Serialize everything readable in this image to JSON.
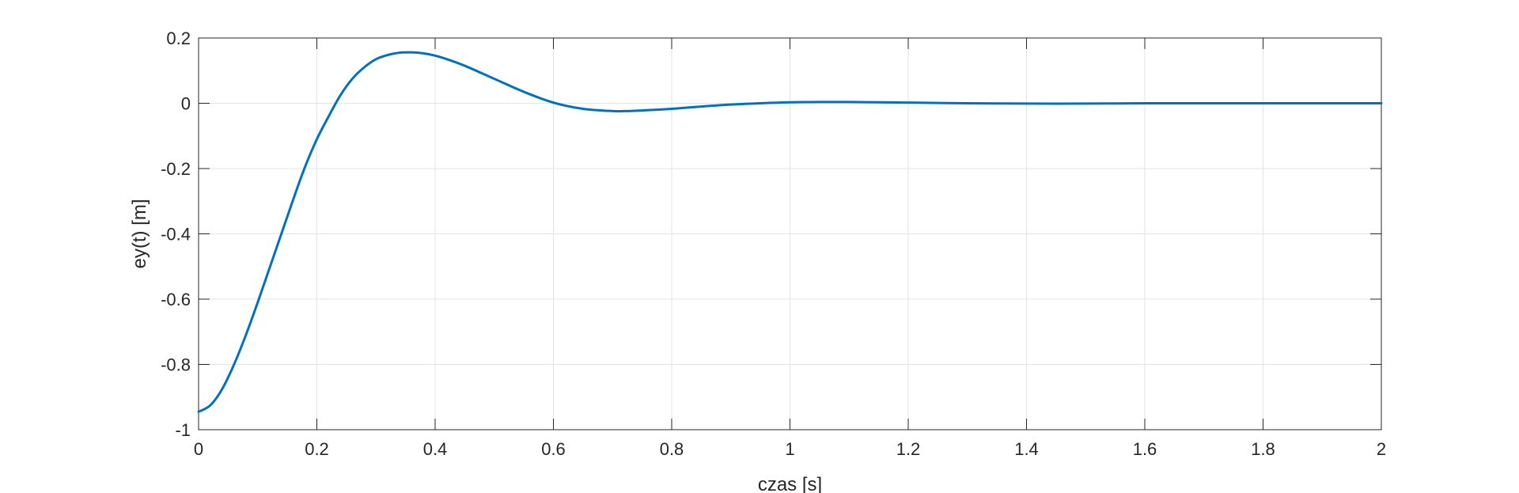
{
  "chart_data": {
    "type": "line",
    "title": "",
    "xlabel": "czas   [s]",
    "ylabel": "ey(t)   [m]",
    "xlim": [
      0,
      2
    ],
    "ylim": [
      -1,
      0.2
    ],
    "xticks": [
      0,
      0.2,
      0.4,
      0.6,
      0.8,
      1,
      1.2,
      1.4,
      1.6,
      1.8,
      2
    ],
    "yticks": [
      -1,
      -0.8,
      -0.6,
      -0.4,
      -0.2,
      0,
      0.2
    ],
    "xtick_labels": [
      "0",
      "0.2",
      "0.4",
      "0.6",
      "0.8",
      "1",
      "1.2",
      "1.4",
      "1.6",
      "1.8",
      "2"
    ],
    "ytick_labels": [
      "-1",
      "-0.8",
      "-0.6",
      "-0.4",
      "-0.2",
      "0",
      "0.2"
    ],
    "grid": true,
    "series": [
      {
        "color": "#0072BD",
        "x": [
          0,
          0.02,
          0.04,
          0.06,
          0.08,
          0.1,
          0.12,
          0.14,
          0.16,
          0.18,
          0.2,
          0.22,
          0.24,
          0.26,
          0.28,
          0.3,
          0.32,
          0.34,
          0.36,
          0.38,
          0.4,
          0.42,
          0.45,
          0.5,
          0.55,
          0.6,
          0.65,
          0.7,
          0.72,
          0.75,
          0.8,
          0.85,
          0.9,
          0.95,
          1.0,
          1.05,
          1.1,
          1.15,
          1.2,
          1.3,
          1.4,
          1.5,
          1.6,
          1.7,
          1.8,
          1.9,
          2.0
        ],
        "y": [
          -0.945,
          -0.925,
          -0.875,
          -0.8,
          -0.71,
          -0.61,
          -0.505,
          -0.4,
          -0.295,
          -0.195,
          -0.11,
          -0.04,
          0.025,
          0.075,
          0.11,
          0.135,
          0.148,
          0.155,
          0.156,
          0.153,
          0.146,
          0.135,
          0.115,
          0.075,
          0.035,
          0.002,
          -0.017,
          -0.024,
          -0.024,
          -0.022,
          -0.017,
          -0.01,
          -0.004,
          0.0,
          0.003,
          0.004,
          0.004,
          0.003,
          0.002,
          0.0,
          -0.001,
          -0.001,
          0.0,
          0.0,
          0.0,
          0.0,
          0.0
        ]
      }
    ]
  }
}
